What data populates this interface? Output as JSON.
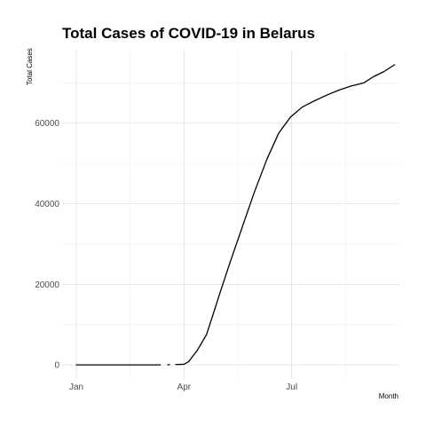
{
  "chart_data": {
    "type": "line",
    "title": "Total Cases of COVID-19 in Belarus",
    "xlabel": "Month",
    "ylabel": "Total Cases",
    "x_ticks": [
      {
        "label": "Jan",
        "date": "2020-01-01"
      },
      {
        "label": "Apr",
        "date": "2020-04-01"
      },
      {
        "label": "Jul",
        "date": "2020-07-01"
      }
    ],
    "y_ticks": [
      0,
      20000,
      40000,
      60000
    ],
    "xlim": [
      "2019-12-20",
      "2020-09-30"
    ],
    "ylim": [
      -3500,
      78000
    ],
    "grid": true,
    "legend": "none",
    "series": [
      {
        "color": "#000000",
        "segments": [
          [
            {
              "date": "2020-01-01",
              "y": 0
            },
            {
              "date": "2020-02-01",
              "y": 0
            },
            {
              "date": "2020-03-01",
              "y": 0
            },
            {
              "date": "2020-03-12",
              "y": 0
            }
          ],
          [
            {
              "date": "2020-03-19",
              "y": 50
            }
          ],
          [
            {
              "date": "2020-03-25",
              "y": 80
            },
            {
              "date": "2020-04-01",
              "y": 150
            },
            {
              "date": "2020-04-05",
              "y": 800
            },
            {
              "date": "2020-04-08",
              "y": 2000
            },
            {
              "date": "2020-04-12",
              "y": 3500
            },
            {
              "date": "2020-04-15",
              "y": 5000
            },
            {
              "date": "2020-04-20",
              "y": 7500
            },
            {
              "date": "2020-04-25",
              "y": 12000
            },
            {
              "date": "2020-05-01",
              "y": 17500
            },
            {
              "date": "2020-05-10",
              "y": 25500
            },
            {
              "date": "2020-05-20",
              "y": 34000
            },
            {
              "date": "2020-05-30",
              "y": 42500
            },
            {
              "date": "2020-06-10",
              "y": 51000
            },
            {
              "date": "2020-06-20",
              "y": 57500
            },
            {
              "date": "2020-06-30",
              "y": 61500
            },
            {
              "date": "2020-07-10",
              "y": 64000
            },
            {
              "date": "2020-07-20",
              "y": 65500
            },
            {
              "date": "2020-07-31",
              "y": 67000
            },
            {
              "date": "2020-08-10",
              "y": 68200
            },
            {
              "date": "2020-08-20",
              "y": 69200
            },
            {
              "date": "2020-08-31",
              "y": 70000
            },
            {
              "date": "2020-09-08",
              "y": 71500
            },
            {
              "date": "2020-09-17",
              "y": 72800
            },
            {
              "date": "2020-09-26",
              "y": 74500
            }
          ]
        ]
      }
    ]
  }
}
